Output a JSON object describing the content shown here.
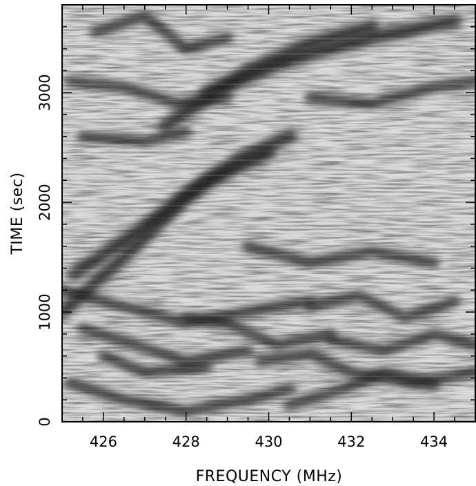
{
  "chart_data": {
    "type": "heatmap",
    "title": "",
    "xlabel": "FREQUENCY (MHz)",
    "ylabel": "TIME (sec)",
    "xlim": [
      425.0,
      435.0
    ],
    "ylim": [
      0,
      3800
    ],
    "x_major_ticks": [
      426,
      428,
      430,
      432,
      434
    ],
    "y_major_ticks": [
      0,
      1000,
      2000,
      3000
    ],
    "x_tick_labels": [
      "426",
      "428",
      "430",
      "432",
      "434"
    ],
    "y_tick_labels": [
      "0",
      "1000",
      "2000",
      "3000"
    ],
    "colormap": "grayscale (dark = high intensity)",
    "grid": false,
    "legend": "none",
    "features": [
      {
        "name": "drifting-scintle",
        "points": [
          [
            425.0,
            1000
          ],
          [
            426.5,
            1500
          ],
          [
            428.0,
            2050
          ],
          [
            429.3,
            2400
          ],
          [
            430.5,
            2600
          ]
        ]
      },
      {
        "name": "drifting-scintle",
        "points": [
          [
            425.3,
            1350
          ],
          [
            427.0,
            1780
          ],
          [
            428.5,
            2200
          ],
          [
            430.0,
            2450
          ]
        ]
      },
      {
        "name": "drifting-scintle",
        "points": [
          [
            427.5,
            2700
          ],
          [
            429.5,
            3200
          ],
          [
            431.0,
            3450
          ],
          [
            432.5,
            3600
          ]
        ]
      },
      {
        "name": "drifting-scintle",
        "points": [
          [
            428.5,
            3000
          ],
          [
            430.5,
            3300
          ],
          [
            432.5,
            3500
          ],
          [
            434.5,
            3650
          ]
        ]
      },
      {
        "name": "band",
        "points": [
          [
            425.5,
            2600
          ],
          [
            427.0,
            2550
          ],
          [
            428.0,
            2650
          ]
        ]
      },
      {
        "name": "band",
        "points": [
          [
            425.2,
            3100
          ],
          [
            426.5,
            3050
          ],
          [
            427.8,
            2900
          ],
          [
            429.0,
            2950
          ]
        ]
      },
      {
        "name": "band",
        "points": [
          [
            431.0,
            2950
          ],
          [
            432.5,
            2900
          ],
          [
            434.0,
            3050
          ],
          [
            435.0,
            3100
          ]
        ]
      },
      {
        "name": "band",
        "points": [
          [
            425.8,
            3550
          ],
          [
            427.0,
            3700
          ],
          [
            428.0,
            3400
          ],
          [
            429.0,
            3500
          ]
        ]
      },
      {
        "name": "band",
        "points": [
          [
            429.5,
            1600
          ],
          [
            431.0,
            1450
          ],
          [
            432.5,
            1550
          ],
          [
            434.0,
            1450
          ]
        ]
      },
      {
        "name": "band",
        "points": [
          [
            425.0,
            1200
          ],
          [
            426.5,
            1050
          ],
          [
            428.0,
            900
          ],
          [
            429.5,
            1000
          ],
          [
            431.0,
            1100
          ]
        ]
      },
      {
        "name": "band",
        "points": [
          [
            428.0,
            950
          ],
          [
            429.0,
            900
          ],
          [
            430.2,
            700
          ],
          [
            431.5,
            800
          ]
        ]
      },
      {
        "name": "band",
        "points": [
          [
            431.0,
            1050
          ],
          [
            432.2,
            1150
          ],
          [
            433.3,
            950
          ],
          [
            434.5,
            1100
          ]
        ]
      },
      {
        "name": "band",
        "points": [
          [
            425.5,
            850
          ],
          [
            426.8,
            700
          ],
          [
            428.0,
            550
          ],
          [
            429.5,
            650
          ]
        ]
      },
      {
        "name": "band",
        "points": [
          [
            429.8,
            550
          ],
          [
            431.0,
            620
          ],
          [
            432.0,
            450
          ],
          [
            433.5,
            350
          ],
          [
            435.0,
            450
          ]
        ]
      },
      {
        "name": "band",
        "points": [
          [
            425.2,
            350
          ],
          [
            426.5,
            200
          ],
          [
            428.0,
            100
          ],
          [
            429.5,
            200
          ],
          [
            430.5,
            300
          ]
        ]
      },
      {
        "name": "band",
        "points": [
          [
            430.5,
            150
          ],
          [
            431.8,
            300
          ],
          [
            432.8,
            450
          ],
          [
            434.0,
            350
          ]
        ]
      },
      {
        "name": "band",
        "points": [
          [
            426.0,
            600
          ],
          [
            427.0,
            450
          ],
          [
            428.5,
            500
          ]
        ]
      },
      {
        "name": "band",
        "points": [
          [
            431.5,
            750
          ],
          [
            432.8,
            650
          ],
          [
            434.0,
            800
          ],
          [
            435.0,
            700
          ]
        ]
      }
    ]
  }
}
